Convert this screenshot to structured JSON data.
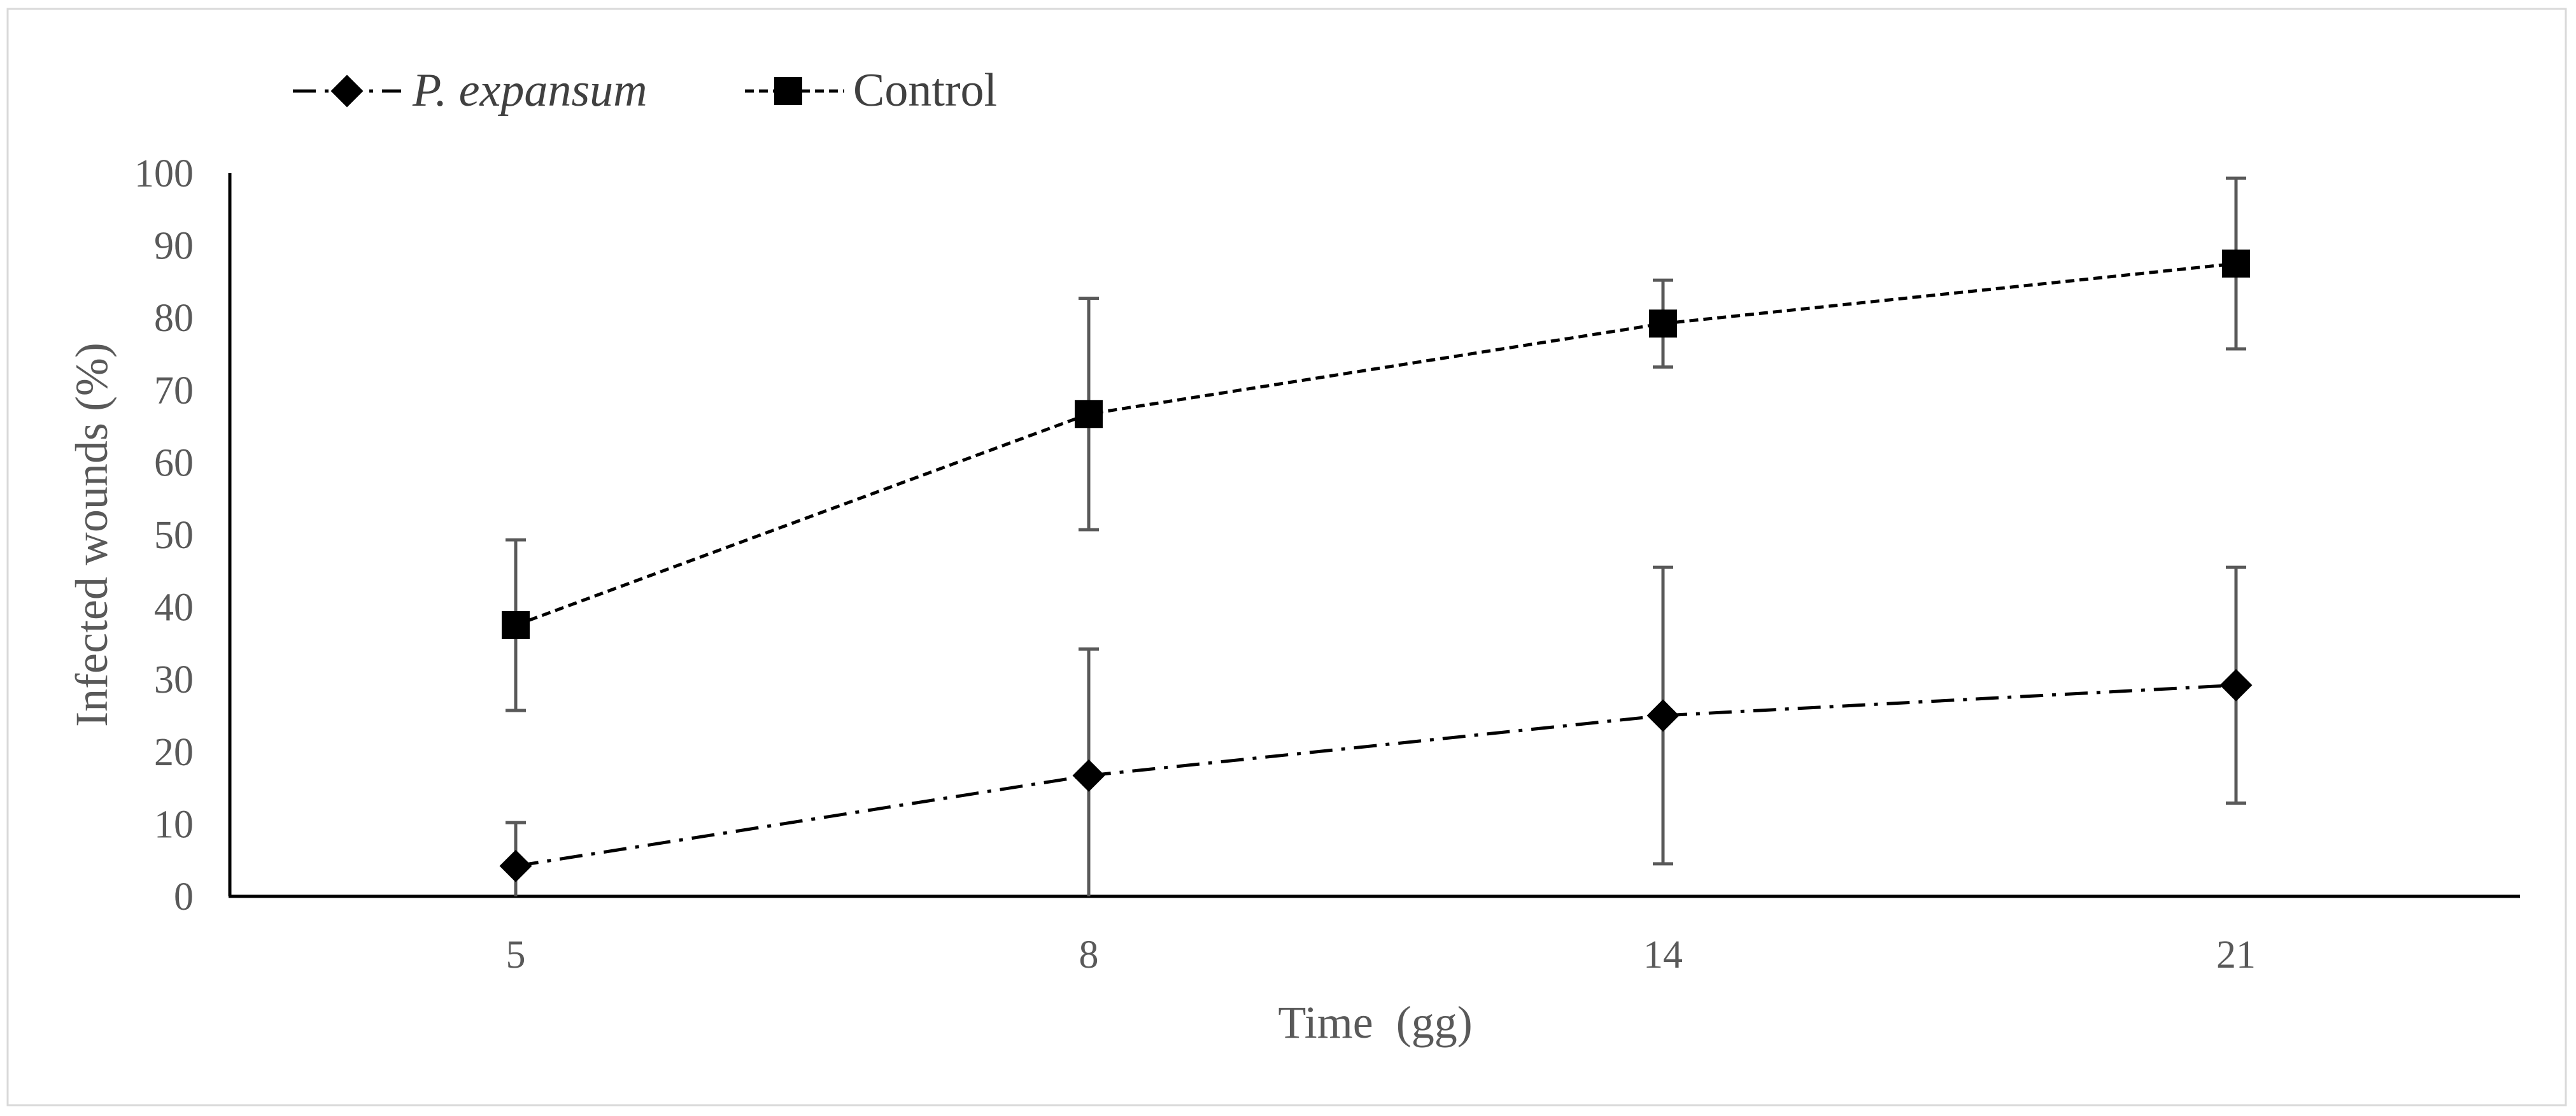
{
  "chart_data": {
    "type": "line",
    "title": "",
    "xlabel": "Time  (gg)",
    "ylabel": "Infected wounds (%)",
    "categories": [
      "5",
      "8",
      "14",
      "21"
    ],
    "ylim": [
      0,
      100
    ],
    "yticks": [
      0,
      10,
      20,
      30,
      40,
      50,
      60,
      70,
      80,
      90,
      100
    ],
    "ytick_labels": [
      "0",
      "10",
      "20",
      "30",
      "40",
      "50",
      "60",
      "70",
      "80",
      "90",
      "100"
    ],
    "grid": false,
    "legend": {
      "position": "top-left",
      "orientation": "horizontal"
    },
    "series": [
      {
        "name": "P. expansum",
        "italic": true,
        "marker": "diamond",
        "line_style": "dash-dot",
        "color": "#000000",
        "values": [
          4.2,
          16.7,
          25.0,
          29.2
        ],
        "error": [
          6.0,
          17.5,
          20.5,
          16.3
        ]
      },
      {
        "name": "Control",
        "italic": false,
        "marker": "square",
        "line_style": "dashed",
        "color": "#000000",
        "values": [
          37.5,
          66.7,
          79.2,
          87.5
        ],
        "error": [
          11.8,
          16.0,
          6.0,
          11.8
        ]
      }
    ],
    "errorbar_color": "#595959"
  }
}
